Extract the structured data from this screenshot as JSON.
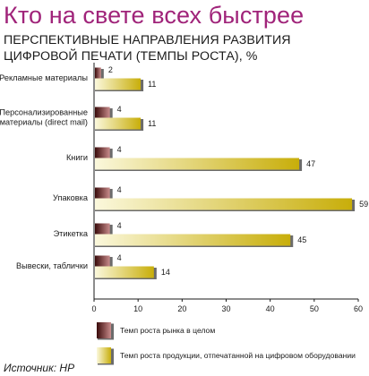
{
  "headline": "Кто на свете всех быстрее",
  "source": "Источник: HP",
  "colors": {
    "headline": "#a0247a",
    "series_market_dark": "#3a0a0a",
    "series_market_light": "#c98c8c",
    "series_digital_light": "#fbf8dc",
    "series_digital_dark": "#c8ae0a",
    "bar_shadow": "#6b6b6b"
  },
  "chart_data": {
    "type": "bar",
    "orientation": "horizontal",
    "title": "ПЕРСПЕКТИВНЫЕ НАПРАВЛЕНИЯ РАЗВИТИЯ ЦИФРОВОЙ ПЕЧАТИ (ТЕМПЫ РОСТА), %",
    "categories": [
      "Рекламные материалы",
      "Персонализированные материалы (direct mail)",
      "Книги",
      "Упаковка",
      "Этикетка",
      "Вывески, таблички"
    ],
    "category_lines": [
      [
        "Рекламные материалы"
      ],
      [
        "Персонализированные",
        "материалы (direct mail)"
      ],
      [
        "Книги"
      ],
      [
        "Упаковка"
      ],
      [
        "Этикетка"
      ],
      [
        "Вывески, таблички"
      ]
    ],
    "series": [
      {
        "name": "Темп роста рынка в целом",
        "values": [
          2,
          4,
          4,
          4,
          4,
          4
        ]
      },
      {
        "name": "Темп роста продукции, отпечатанной на цифровом оборудовании",
        "values": [
          11,
          11,
          47,
          59,
          45,
          14
        ]
      }
    ],
    "xlim": [
      0,
      60
    ],
    "xticks": [
      0,
      10,
      20,
      30,
      40,
      50,
      60
    ],
    "grid": false,
    "legend": "bottom"
  }
}
